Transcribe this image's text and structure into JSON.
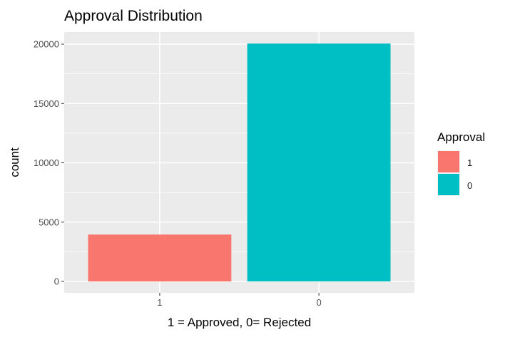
{
  "chart_data": {
    "type": "bar",
    "title": "Approval Distribution",
    "xlabel": "1 = Approved, 0= Rejected",
    "ylabel": "count",
    "categories": [
      "1",
      "0"
    ],
    "values": [
      3950,
      20050
    ],
    "colors": [
      "#F8766D",
      "#00BFC4"
    ],
    "ylim": [
      0,
      21000
    ],
    "yticks": [
      0,
      5000,
      10000,
      15000,
      20000
    ],
    "ytick_labels": [
      "0",
      "5000",
      "10000",
      "15000",
      "20000"
    ],
    "grid": true,
    "panel_background": "#EBEBEB",
    "grid_color": "#FFFFFF",
    "legend": {
      "title": "Approval",
      "placement": "right",
      "entries": [
        {
          "label": "1",
          "color": "#F8766D"
        },
        {
          "label": "0",
          "color": "#00BFC4"
        }
      ]
    }
  }
}
